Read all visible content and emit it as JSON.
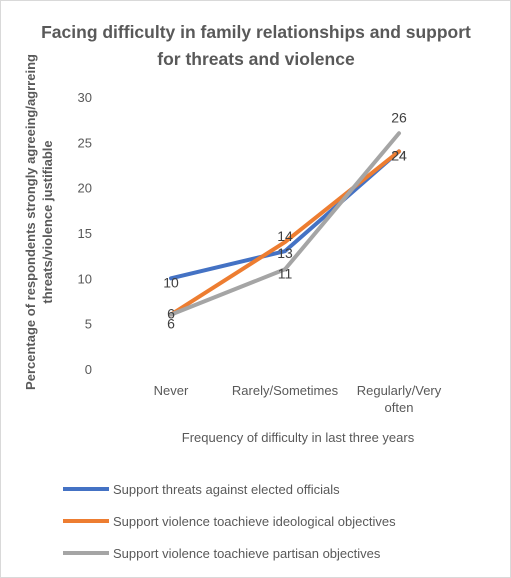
{
  "chart_data": {
    "type": "line",
    "title": "Facing difficulty in family relationships and support for threats and violence",
    "xlabel": "Frequency of  difficulty in last three years",
    "ylabel": "Percentage of respondents strongly agreeing/agrreing threats/violence justifiable",
    "ylim": [
      0,
      30
    ],
    "yticks": [
      0,
      5,
      10,
      15,
      20,
      25,
      30
    ],
    "grid": false,
    "legend_position": "bottom",
    "categories": [
      "Never",
      "Rarely/Sometimes",
      "Regularly/Very often"
    ],
    "series": [
      {
        "name": "Support threats against elected officials",
        "color": "#4472C4",
        "values": [
          10,
          13,
          24
        ]
      },
      {
        "name": "Support violence toachieve ideological objectives",
        "color": "#ED7D31",
        "values": [
          6,
          14,
          24
        ]
      },
      {
        "name": "Support violence toachieve partisan objectives",
        "color": "#A5A5A5",
        "values": [
          6,
          11,
          26
        ]
      }
    ]
  }
}
